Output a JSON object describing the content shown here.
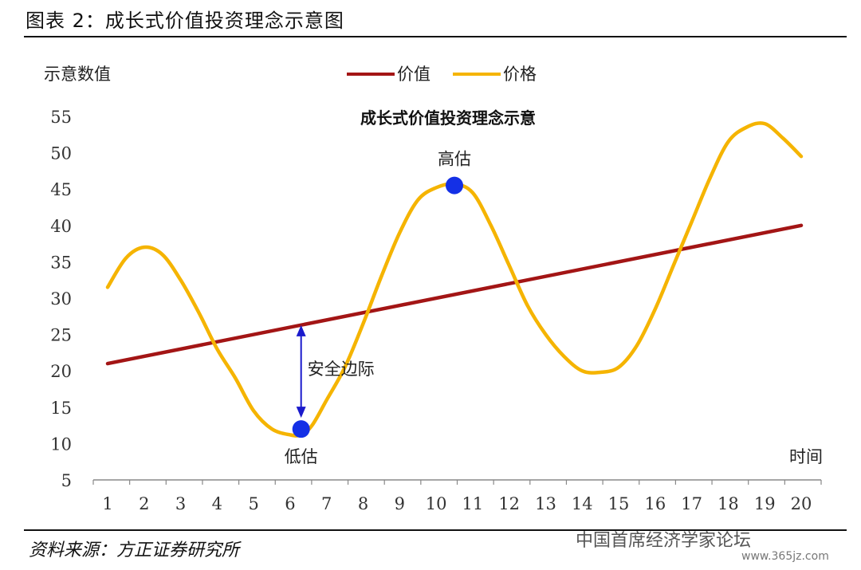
{
  "figure": {
    "title": "图表 2：成长式价值投资理念示意图",
    "source": "资料来源：方正证券研究所",
    "watermark": "中国首席经济学家论坛",
    "watermark_url": "www.365jz.com"
  },
  "colors": {
    "value_line": "#a31515",
    "price_line": "#f5b400",
    "point": "#1430e6",
    "arrow": "#1a1acc",
    "axis": "#888888"
  },
  "chart_data": {
    "type": "line",
    "title": "成长式价值投资理念示意",
    "ylabel": "示意数值",
    "xlabel": "时间",
    "categories": [
      "1",
      "2",
      "3",
      "4",
      "5",
      "6",
      "7",
      "8",
      "9",
      "10",
      "11",
      "12",
      "13",
      "14",
      "15",
      "16",
      "17",
      "18",
      "19",
      "20"
    ],
    "ylim": [
      5,
      55
    ],
    "yticks": [
      5,
      10,
      15,
      20,
      25,
      30,
      35,
      40,
      45,
      50,
      55
    ],
    "legend_position": "top-center",
    "grid": false,
    "series": [
      {
        "name": "价值",
        "color": "#a31515",
        "x": [
          1,
          20
        ],
        "y": [
          21,
          40
        ]
      },
      {
        "name": "价格",
        "color": "#f5b400",
        "x": [
          1,
          1.5,
          2,
          2.5,
          3,
          3.5,
          4,
          4.5,
          5,
          5.5,
          6,
          6.3,
          6.6,
          7,
          7.5,
          8,
          8.5,
          9,
          9.5,
          10,
          10.5,
          11,
          11.5,
          12,
          12.5,
          13,
          13.5,
          14,
          14.5,
          15,
          15.5,
          16,
          16.5,
          17,
          17.5,
          18,
          18.5,
          19,
          19.5,
          20
        ],
        "y": [
          31.5,
          35.5,
          37,
          36,
          32.5,
          28,
          23,
          19,
          14.5,
          12,
          11.2,
          11.2,
          12.5,
          16,
          20.5,
          26.5,
          33,
          39,
          43.5,
          45.2,
          45.7,
          44.5,
          40,
          34.5,
          29,
          25,
          22,
          20,
          19.8,
          20.5,
          23.5,
          28.5,
          34.5,
          40.5,
          46.5,
          51.5,
          53.5,
          54,
          52,
          49.5
        ]
      }
    ],
    "annotations": [
      {
        "text": "高估",
        "x": 10.5,
        "y": 45.5
      },
      {
        "text": "低估",
        "x": 6.3,
        "y": 12
      },
      {
        "text": "安全边际",
        "x_from": 6.3,
        "y_from": 12,
        "x_to": 6.3,
        "y_to": 26.5
      }
    ]
  }
}
